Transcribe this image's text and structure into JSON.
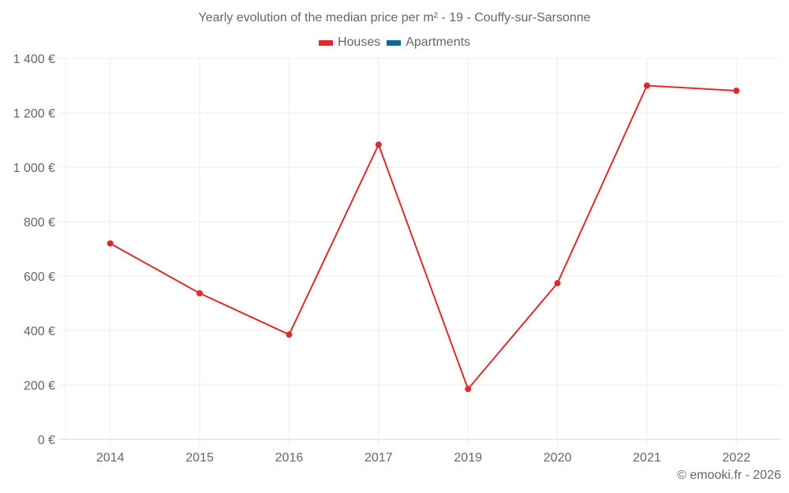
{
  "title": "Yearly evolution of the median price per m² - 19 - Couffy-sur-Sarsonne",
  "legend": [
    {
      "label": "Houses",
      "color": "#dd2a2a"
    },
    {
      "label": "Apartments",
      "color": "#0c6a9a"
    }
  ],
  "credit": "© emooki.fr - 2026",
  "y_ticks": [
    "0 €",
    "200 €",
    "400 €",
    "600 €",
    "800 €",
    "1 000 €",
    "1 200 €",
    "1 400 €"
  ],
  "chart_data": {
    "type": "line",
    "title": "Yearly evolution of the median price per m² - 19 - Couffy-sur-Sarsonne",
    "xlabel": "",
    "ylabel": "",
    "categories": [
      "2014",
      "2015",
      "2016",
      "2017",
      "2019",
      "2020",
      "2021",
      "2022"
    ],
    "series": [
      {
        "name": "Houses",
        "color": "#dd2a2a",
        "values": [
          720,
          537,
          385,
          1083,
          185,
          574,
          1300,
          1281
        ]
      },
      {
        "name": "Apartments",
        "color": "#0c6a9a",
        "values": []
      }
    ],
    "ylim": [
      0,
      1400
    ],
    "y_tick_step": 200,
    "grid": true,
    "legend_position": "top"
  }
}
